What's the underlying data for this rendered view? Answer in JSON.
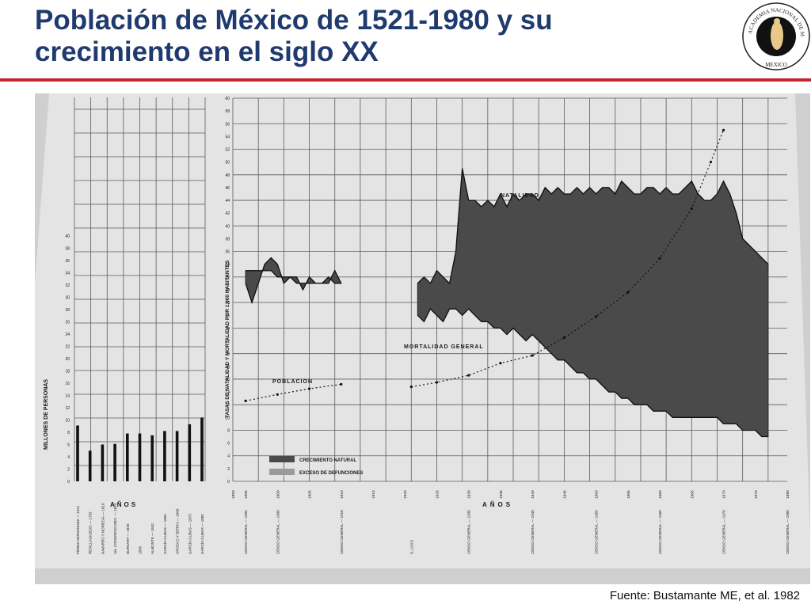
{
  "slide": {
    "title_line1": "Población de México de 1521-1980 y su",
    "title_line2": "crecimiento en el siglo XX",
    "source": "Fuente: Bustamante ME, et al. 1982"
  },
  "logo": {
    "ring_text": "ACADEMIA NACIONAL DE MEDICINA",
    "bottom_text": "MEXICO"
  },
  "chart_data": [
    {
      "type": "bar",
      "ylabel": "MILLONES DE PERSONAS",
      "xlabel": "AÑOS",
      "ylim": [
        0,
        40
      ],
      "categories": [
        "PÉREZ HERNÁNDEZ — 1521",
        "REVILLAGIGEDO — 1793",
        "NAVARRO Y NORIEGA — 1810",
        "1er. CONGRESO MEX. — 1824",
        "BURKART — 1830",
        "1836",
        "ALMONTE — 1842",
        "GARCÍA CUBAS — 1856",
        "OROZCO Y BERRA — 1860",
        "GARCÍA CUBAS — 1873",
        "GARCÍA CUBAS — 1882"
      ],
      "values": [
        9.1,
        5.0,
        6.0,
        6.1,
        7.8,
        7.8,
        7.5,
        8.2,
        8.2,
        9.3,
        10.4
      ],
      "colors": {
        "bar": "#111111"
      }
    },
    {
      "type": "area",
      "ylabel": "TASAS DE NATALIDAD Y MORTALIDAD POR 1,000 HABITANTES",
      "xlabel": "AÑOS",
      "ylim": [
        0,
        60
      ],
      "xlim": [
        1893,
        1980
      ],
      "x_ticks": [
        1893,
        1895,
        1900,
        1905,
        1910,
        1915,
        1920,
        1925,
        1930,
        1935,
        1940,
        1945,
        1950,
        1955,
        1960,
        1965,
        1970,
        1975,
        1980
      ],
      "annotations": {
        "natalidad": "NATALIDAD",
        "mortalidad": "MORTALIDAD GENERAL",
        "poblacion": "POBLACION"
      },
      "legend": {
        "crecimiento": "CRECIMIENTO NATURAL",
        "exceso": "EXCESO DE DEFUNCIONES"
      },
      "census_labels": [
        "CENSO GENERAL — 1895",
        "CENSO GENERAL — 1900",
        "CENSO GENERAL — 1910",
        "S. LOYO",
        "CENSO GENERAL — 1930",
        "CENSO GENERAL — 1940",
        "CENSO GENERAL — 1950",
        "CENSO GENERAL — 1960",
        "CENSO GENERAL — 1970",
        "CENSO GENERAL — 1980"
      ],
      "series": [
        {
          "name": "NATALIDAD",
          "x": [
            1895,
            1896,
            1897,
            1898,
            1899,
            1900,
            1901,
            1902,
            1903,
            1904,
            1905,
            1906,
            1907,
            1908,
            1909,
            1910
          ],
          "values": [
            31,
            28,
            31,
            34,
            35,
            34,
            31,
            32,
            32,
            30,
            32,
            31,
            31,
            31,
            33,
            31
          ]
        },
        {
          "name": "MORTALIDAD GENERAL",
          "x": [
            1895,
            1896,
            1897,
            1898,
            1899,
            1900,
            1901,
            1902,
            1903,
            1904,
            1905,
            1906,
            1907,
            1908,
            1909,
            1910
          ],
          "values": [
            33,
            33,
            33,
            33,
            33,
            32,
            32,
            32,
            31,
            31,
            31,
            31,
            31,
            32,
            31,
            31
          ]
        },
        {
          "name": "NATALIDAD",
          "x": [
            1922,
            1923,
            1924,
            1925,
            1926,
            1927,
            1928,
            1929,
            1930,
            1931,
            1932,
            1933,
            1934,
            1935,
            1936,
            1937,
            1938,
            1939,
            1940,
            1941,
            1942,
            1943,
            1944,
            1945,
            1946,
            1947,
            1948,
            1949,
            1950,
            1951,
            1952,
            1953,
            1954,
            1955,
            1956,
            1957,
            1958,
            1959,
            1960,
            1961,
            1962,
            1963,
            1964,
            1965,
            1966,
            1967,
            1968,
            1969,
            1970,
            1971,
            1972,
            1973,
            1974,
            1975,
            1976,
            1977
          ],
          "values": [
            31,
            32,
            31,
            33,
            32,
            31,
            36,
            49,
            44,
            44,
            43,
            44,
            43,
            45,
            43,
            45,
            44,
            45,
            45,
            44,
            46,
            45,
            46,
            45,
            45,
            46,
            45,
            46,
            45,
            46,
            46,
            45,
            47,
            46,
            45,
            45,
            46,
            46,
            45,
            46,
            45,
            45,
            46,
            47,
            45,
            44,
            44,
            45,
            47,
            45,
            42,
            38,
            37,
            36,
            35,
            34
          ]
        },
        {
          "name": "MORTALIDAD GENERAL",
          "x": [
            1922,
            1923,
            1924,
            1925,
            1926,
            1927,
            1928,
            1929,
            1930,
            1931,
            1932,
            1933,
            1934,
            1935,
            1936,
            1937,
            1938,
            1939,
            1940,
            1941,
            1942,
            1943,
            1944,
            1945,
            1946,
            1947,
            1948,
            1949,
            1950,
            1951,
            1952,
            1953,
            1954,
            1955,
            1956,
            1957,
            1958,
            1959,
            1960,
            1961,
            1962,
            1963,
            1964,
            1965,
            1966,
            1967,
            1968,
            1969,
            1970,
            1971,
            1972,
            1973,
            1974,
            1975,
            1976,
            1977
          ],
          "values": [
            26,
            25,
            27,
            26,
            25,
            27,
            27,
            26,
            27,
            26,
            25,
            25,
            24,
            24,
            23,
            24,
            23,
            22,
            23,
            22,
            21,
            20,
            19,
            19,
            18,
            17,
            17,
            16,
            16,
            15,
            14,
            14,
            13,
            13,
            12,
            12,
            12,
            11,
            11,
            11,
            10,
            10,
            10,
            10,
            10,
            10,
            10,
            10,
            9,
            9,
            9,
            8,
            8,
            8,
            7,
            7
          ]
        },
        {
          "name": "POBLACION",
          "x": [
            1895,
            1900,
            1905,
            1910,
            1921,
            1925,
            1930,
            1935,
            1940,
            1945,
            1950,
            1955,
            1960,
            1965,
            1968,
            1970
          ],
          "values": [
            12.6,
            13.6,
            14.5,
            15.2,
            14.8,
            15.5,
            16.6,
            18.5,
            19.7,
            22.5,
            25.8,
            29.6,
            34.9,
            42.7,
            50.0,
            55
          ]
        }
      ],
      "colors": {
        "area": "#4a4a4a",
        "line": "#111111",
        "grid": "#5a5a5a"
      }
    }
  ]
}
